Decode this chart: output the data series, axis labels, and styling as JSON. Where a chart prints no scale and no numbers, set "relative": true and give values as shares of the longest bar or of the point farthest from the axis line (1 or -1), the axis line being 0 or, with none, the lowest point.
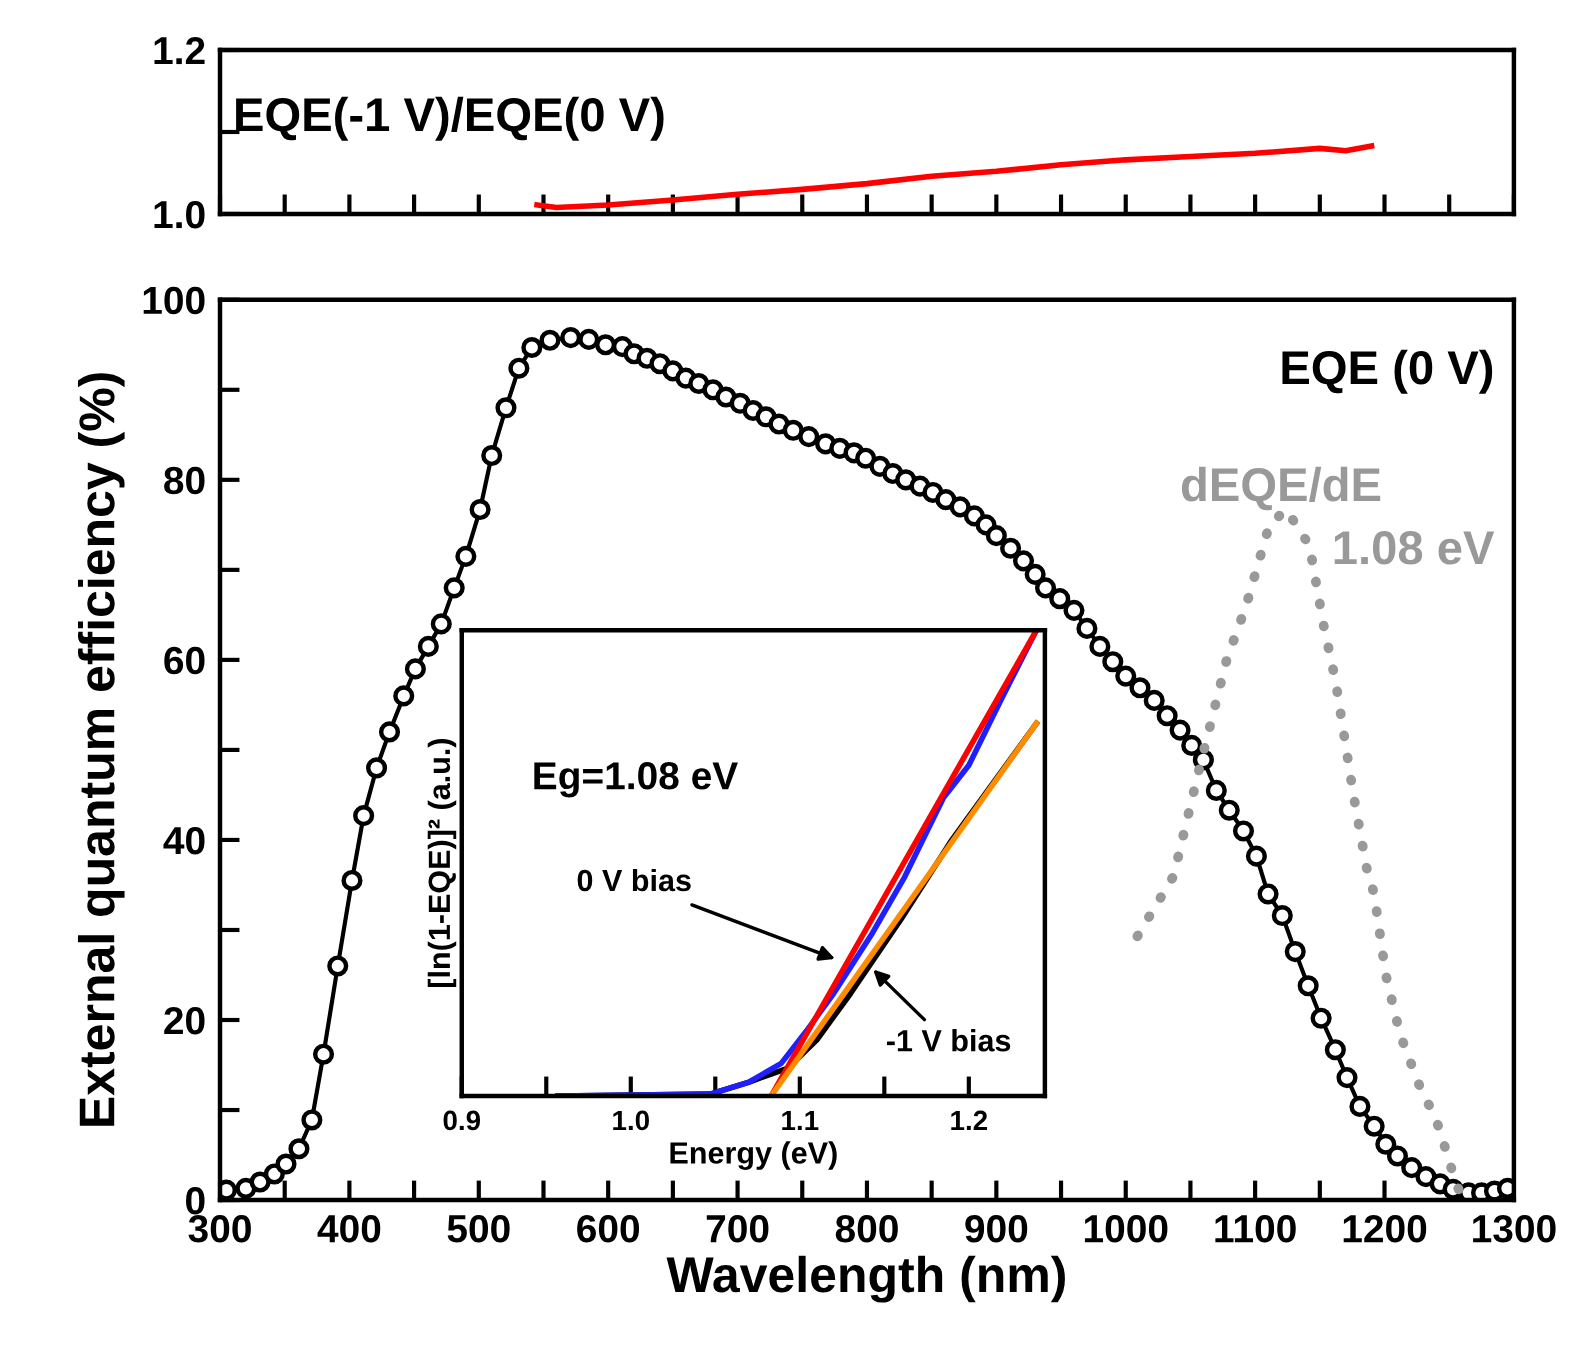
{
  "chart_data": [
    {
      "type": "line",
      "xlim": [
        300,
        1300
      ],
      "ylim": [
        1.0,
        1.2
      ],
      "yticks": [
        {
          "value": 1.0,
          "label": "1.0"
        },
        {
          "value": 1.1,
          "label": null
        },
        1.2
      ],
      "xticks": [
        {
          "value": 300,
          "label": null
        },
        {
          "value": 350,
          "label": null
        },
        {
          "value": 400,
          "label": null
        },
        {
          "value": 450,
          "label": null
        },
        {
          "value": 500,
          "label": null
        },
        {
          "value": 550,
          "label": null
        },
        {
          "value": 600,
          "label": null
        },
        {
          "value": 650,
          "label": null
        },
        {
          "value": 700,
          "label": null
        },
        {
          "value": 750,
          "label": null
        },
        {
          "value": 800,
          "label": null
        },
        {
          "value": 850,
          "label": null
        },
        {
          "value": 900,
          "label": null
        },
        {
          "value": 950,
          "label": null
        },
        {
          "value": 1000,
          "label": null
        },
        {
          "value": 1050,
          "label": null
        },
        {
          "value": 1100,
          "label": null
        },
        {
          "value": 1150,
          "label": null
        },
        {
          "value": 1200,
          "label": null
        },
        {
          "value": 1250,
          "label": null
        },
        {
          "value": 1300,
          "label": null
        }
      ],
      "tick_labels": "y",
      "annotations": [
        "EQE(-1 V)/EQE(0 V)"
      ],
      "series": [
        {
          "color": "#ff0000",
          "x": [
            545,
            560,
            600,
            650,
            700,
            750,
            800,
            850,
            900,
            950,
            1000,
            1050,
            1100,
            1150,
            1170,
            1190
          ],
          "values": [
            1.011,
            1.008,
            1.011,
            1.017,
            1.024,
            1.03,
            1.037,
            1.046,
            1.052,
            1.06,
            1.066,
            1.07,
            1.074,
            1.08,
            1.077,
            1.083
          ]
        }
      ]
    },
    {
      "type": "line",
      "xlabel": "Wavelength (nm)",
      "ylabel": "External quantum efficiency (%)",
      "xlim": [
        300,
        1300
      ],
      "ylim": [
        0,
        100
      ],
      "xticks": [
        300,
        {
          "value": 350,
          "label": null
        },
        400,
        {
          "value": 450,
          "label": null
        },
        500,
        {
          "value": 550,
          "label": null
        },
        600,
        {
          "value": 650,
          "label": null
        },
        700,
        {
          "value": 750,
          "label": null
        },
        800,
        {
          "value": 850,
          "label": null
        },
        900,
        {
          "value": 950,
          "label": null
        },
        1000,
        {
          "value": 1050,
          "label": null
        },
        1100,
        {
          "value": 1150,
          "label": null
        },
        1200,
        {
          "value": 1250,
          "label": null
        },
        1300
      ],
      "yticks": [
        0,
        {
          "value": 10,
          "label": null
        },
        20,
        {
          "value": 30,
          "label": null
        },
        40,
        {
          "value": 50,
          "label": null
        },
        60,
        {
          "value": 70,
          "label": null
        },
        80,
        {
          "value": 90,
          "label": null
        },
        100
      ],
      "annotations": [
        "EQE (0 V)",
        "dEQE/dE",
        "1.08 eV"
      ],
      "series": [
        {
          "color": "#000000",
          "marker": "circle",
          "x": [
            305,
            320,
            331,
            342,
            351,
            361,
            371,
            380,
            391,
            402,
            411,
            421,
            431,
            442,
            451,
            461,
            471,
            481,
            490,
            501,
            510,
            521,
            531,
            541,
            555,
            571,
            585,
            598,
            611,
            620,
            630,
            640,
            650,
            660,
            670,
            681,
            691,
            702,
            712,
            722,
            732,
            743,
            755,
            768,
            779,
            790,
            799,
            810,
            820,
            830,
            841,
            851,
            861,
            872,
            883,
            892,
            900,
            911,
            921,
            930,
            938,
            949,
            960,
            970,
            980,
            990,
            1000,
            1011,
            1022,
            1032,
            1042,
            1051,
            1060,
            1070,
            1080,
            1091,
            1101,
            1110,
            1121,
            1131,
            1141,
            1151,
            1162,
            1171,
            1181,
            1192,
            1201,
            1210,
            1221,
            1232,
            1243,
            1253,
            1265,
            1275,
            1285,
            1295
          ],
          "values": [
            1.1,
            1.3,
            2.0,
            2.9,
            4.0,
            5.7,
            8.9,
            16.2,
            26,
            35.5,
            42.7,
            48,
            52,
            56,
            59,
            61.5,
            64,
            68,
            71.5,
            76.7,
            82.7,
            88,
            92.4,
            94.7,
            95.5,
            95.8,
            95.6,
            95,
            94.8,
            94,
            93.5,
            92.9,
            92.1,
            91.3,
            90.7,
            90,
            89.2,
            88.5,
            87.7,
            87,
            86.2,
            85.5,
            84.8,
            84,
            83.5,
            83,
            82.4,
            81.5,
            80.7,
            80,
            79.3,
            78.6,
            77.8,
            77,
            76,
            75,
            73.8,
            72.4,
            71,
            69.5,
            68,
            66.8,
            65.5,
            63.5,
            61.5,
            59.8,
            58.2,
            56.9,
            55.5,
            53.8,
            52.2,
            50.5,
            48.9,
            45.5,
            43.3,
            41,
            38.2,
            34,
            31.6,
            27.6,
            23.8,
            20.2,
            16.7,
            13.6,
            10.4,
            8.2,
            6.2,
            4.9,
            3.6,
            2.6,
            1.8,
            1.2,
            0.8,
            0.8,
            1.0,
            1.3
          ]
        },
        {
          "color": "#999999",
          "line_style": "dotted",
          "x": [
            1009,
            1037,
            1057,
            1078,
            1093,
            1111,
            1124,
            1142,
            1153,
            1162,
            1176,
            1186,
            1192,
            1201,
            1212,
            1227,
            1240,
            1250,
            1255,
            1260
          ],
          "values": [
            29.3,
            36,
            48,
            60,
            66,
            75,
            76.7,
            72.7,
            63.8,
            57.8,
            45,
            37,
            34,
            25,
            18.4,
            12.7,
            8.9,
            4.4,
            1.8,
            0.5
          ]
        }
      ]
    },
    {
      "type": "line",
      "relative": true,
      "xlabel": "Energy (eV)",
      "ylabel": "[ln(1-EQE)]² (a.u.)",
      "xlim": [
        0.9,
        1.245
      ],
      "xticks": [
        0.9,
        {
          "value": 0.95,
          "label": null
        },
        {
          "value": 1.0,
          "label": "1.0"
        },
        {
          "value": 1.05,
          "label": null
        },
        1.1,
        {
          "value": 1.15,
          "label": null
        },
        1.2
      ],
      "tick_labels": "x",
      "annotations": [
        "Eg=1.08 eV",
        {
          "text": "0 V bias",
          "x": 1.124,
          "y": 0.29
        },
        {
          "text": "-1 V bias",
          "x": 1.141,
          "y": 0.28
        }
      ],
      "series": [
        {
          "color": "#000000",
          "x": [
            0.957,
            1.047,
            1.07,
            1.093,
            1.11,
            1.13,
            1.16,
            1.19,
            1.22,
            1.24
          ],
          "values": [
            0,
            0.004,
            0.03,
            0.06,
            0.12,
            0.22,
            0.38,
            0.55,
            0.7,
            0.8
          ]
        },
        {
          "color": "#1f1fff",
          "x": [
            0.957,
            1.047,
            1.07,
            1.089,
            1.104,
            1.12,
            1.143,
            1.162,
            1.185,
            1.2,
            1.219,
            1.24
          ],
          "values": [
            0,
            0.004,
            0.03,
            0.07,
            0.14,
            0.22,
            0.35,
            0.47,
            0.64,
            0.71,
            0.85,
            1.0
          ]
        },
        {
          "color": "#ff0000",
          "x": [
            1.083,
            1.24
          ],
          "values": [
            0,
            1.0
          ]
        },
        {
          "color": "#ff8c00",
          "x": [
            1.083,
            1.24
          ],
          "values": [
            0,
            0.8
          ]
        }
      ]
    }
  ]
}
